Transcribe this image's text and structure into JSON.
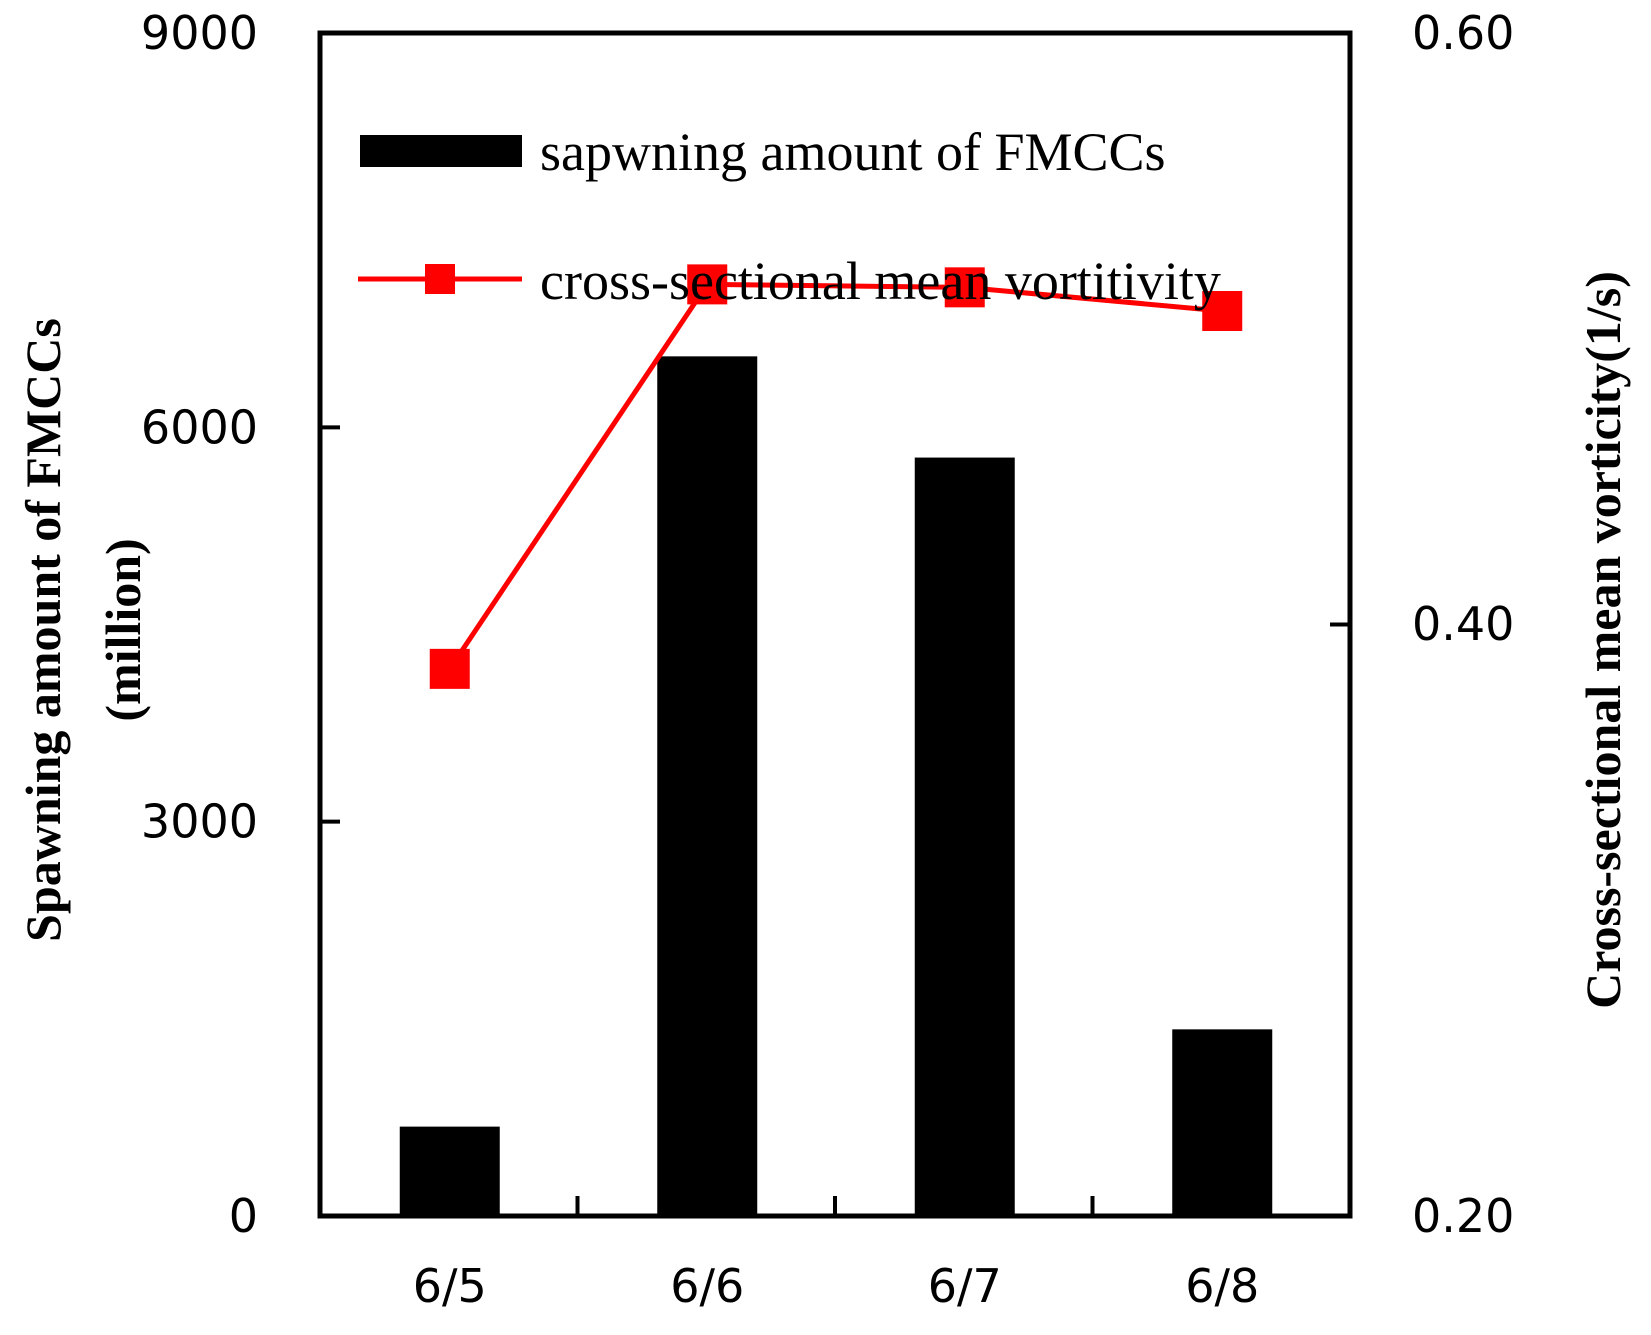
{
  "chart_data": {
    "type": "bar+line",
    "categories": [
      "6/5",
      "6/6",
      "6/7",
      "6/8"
    ],
    "left_axis": {
      "label_line1": "Spawning amount of FMCCs",
      "label_line2": "(million)",
      "ylim": [
        0,
        9000
      ],
      "ticks": [
        0,
        3000,
        6000,
        9000
      ],
      "tick_labels": [
        "0",
        "3000",
        "6000",
        "9000"
      ]
    },
    "right_axis": {
      "label": "Cross-sectional mean vorticity(1/s)",
      "ylim": [
        0.2,
        0.6
      ],
      "ticks": [
        0.2,
        0.4,
        0.6
      ],
      "tick_labels": [
        "0.20",
        "0.40",
        "0.60"
      ]
    },
    "series": [
      {
        "name": "sapwning amount of FMCCs",
        "type": "bar",
        "axis": "left",
        "color": "#000000",
        "values": [
          680,
          6540,
          5770,
          1420
        ]
      },
      {
        "name": "cross-sectional mean vortitivity",
        "type": "line",
        "axis": "right",
        "color": "#ff0000",
        "marker": "square",
        "values": [
          0.385,
          0.515,
          0.514,
          0.506
        ]
      }
    ],
    "legend_position": "top-right",
    "grid": false
  }
}
